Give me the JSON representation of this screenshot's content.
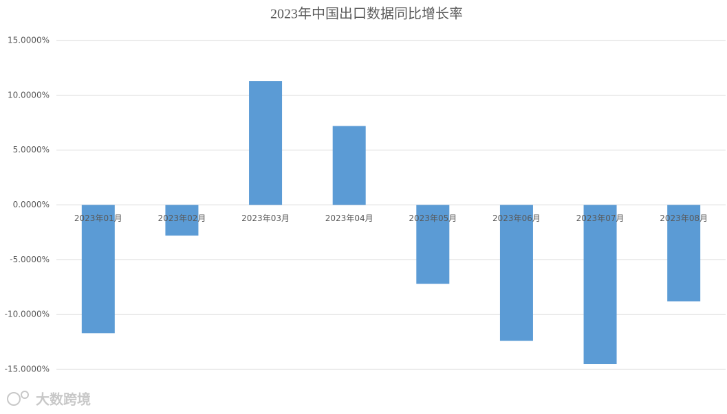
{
  "chart_data": {
    "type": "bar",
    "title": "2023年中国出口数据同比增长率",
    "categories": [
      "2023年01月",
      "2023年02月",
      "2023年03月",
      "2023年04月",
      "2023年05月",
      "2023年06月",
      "2023年07月",
      "2023年08月"
    ],
    "values": [
      -11.7,
      -2.8,
      11.3,
      7.2,
      -7.2,
      -12.4,
      -14.5,
      -8.8
    ],
    "color": "#5b9bd5",
    "ylim": [
      -15,
      15
    ],
    "yticks": [
      {
        "value": -15,
        "label": "-15.0000%"
      },
      {
        "value": -10,
        "label": "-10.0000%"
      },
      {
        "value": -5,
        "label": "-5.0000%"
      },
      {
        "value": 0,
        "label": "0.0000%"
      },
      {
        "value": 5,
        "label": "5.0000%"
      },
      {
        "value": 10,
        "label": "10.0000%"
      },
      {
        "value": 15,
        "label": "15.0000%"
      }
    ],
    "grid": true
  },
  "watermark": "大数跨境"
}
